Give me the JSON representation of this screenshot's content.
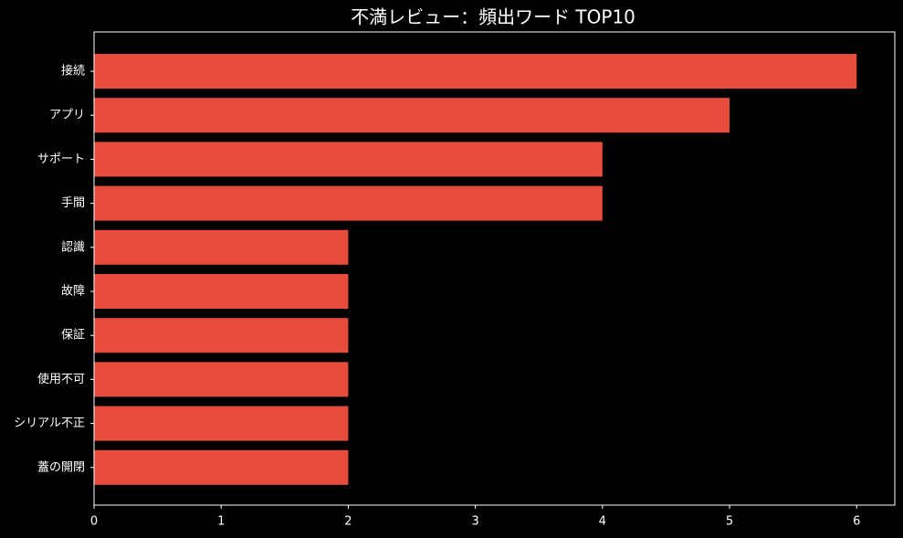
{
  "chart_data": {
    "type": "bar",
    "orientation": "horizontal",
    "title": "不満レビュー：頻出ワード TOP10",
    "categories": [
      "接続",
      "アプリ",
      "サポート",
      "手間",
      "認識",
      "故障",
      "保証",
      "使用不可",
      "シリアル不正",
      "蓋の開閉"
    ],
    "values": [
      6,
      5,
      4,
      4,
      2,
      2,
      2,
      2,
      2,
      2
    ],
    "color": "#e74c3c",
    "xlim": [
      0,
      6.3
    ],
    "xticks": [
      0,
      1,
      2,
      3,
      4,
      5,
      6
    ]
  }
}
